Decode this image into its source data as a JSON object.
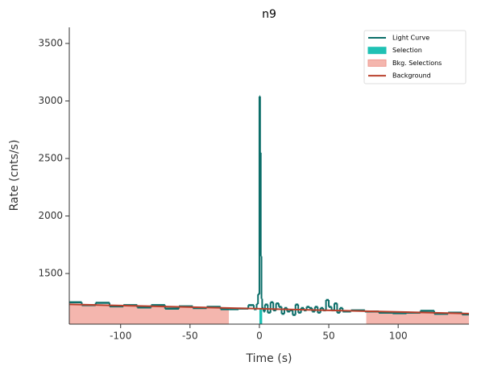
{
  "chart_data": {
    "type": "line",
    "title": "n9",
    "xlabel": "Time (s)",
    "ylabel": "Rate (cnts/s)",
    "xlim": [
      -137,
      151
    ],
    "ylim": [
      1060,
      3640
    ],
    "xticks": [
      -100,
      -50,
      0,
      50,
      100
    ],
    "yticks": [
      1500,
      2000,
      2500,
      3000,
      3500
    ],
    "legend": "upper right",
    "series": [
      {
        "name": "Light Curve",
        "kind": "step",
        "color": "#0b6e69",
        "x": [
          -137,
          -128,
          -118,
          -108,
          -98,
          -88,
          -78,
          -68,
          -58,
          -48,
          -38,
          -28,
          -22,
          -15,
          -8,
          -4,
          -2,
          -1,
          0,
          0.5,
          1,
          1.5,
          2,
          3,
          4,
          6,
          8,
          10,
          12,
          14,
          16,
          18,
          20,
          22,
          24,
          26,
          28,
          30,
          32,
          34,
          36,
          38,
          40,
          42,
          44,
          46,
          48,
          50,
          52,
          54,
          56,
          58,
          60,
          66,
          76,
          86,
          96,
          106,
          116,
          126,
          136,
          146
        ],
        "values": [
          1250,
          1225,
          1245,
          1215,
          1225,
          1205,
          1225,
          1195,
          1215,
          1200,
          1210,
          1190,
          1190,
          1195,
          1225,
          1190,
          1235,
          1320,
          3040,
          2550,
          1650,
          1280,
          1200,
          1170,
          1230,
          1160,
          1250,
          1180,
          1240,
          1210,
          1150,
          1200,
          1170,
          1180,
          1140,
          1230,
          1160,
          1200,
          1180,
          1210,
          1200,
          1170,
          1210,
          1160,
          1200,
          1180,
          1270,
          1210,
          1180,
          1240,
          1160,
          1200,
          1170,
          1180,
          1170,
          1160,
          1155,
          1160,
          1175,
          1150,
          1160,
          1145
        ]
      },
      {
        "name": "Selection",
        "kind": "span",
        "color": "#1fc1b4",
        "ranges": [
          [
            0,
            2
          ]
        ]
      },
      {
        "name": "Bkg. Selections",
        "kind": "span",
        "color": "#f4b6ae",
        "ranges": [
          [
            -137,
            -22
          ],
          [
            77,
            151
          ]
        ]
      },
      {
        "name": "Background",
        "kind": "line",
        "color": "#b9402c",
        "x": [
          -137,
          151
        ],
        "values": [
          1232,
          1152
        ]
      }
    ]
  }
}
